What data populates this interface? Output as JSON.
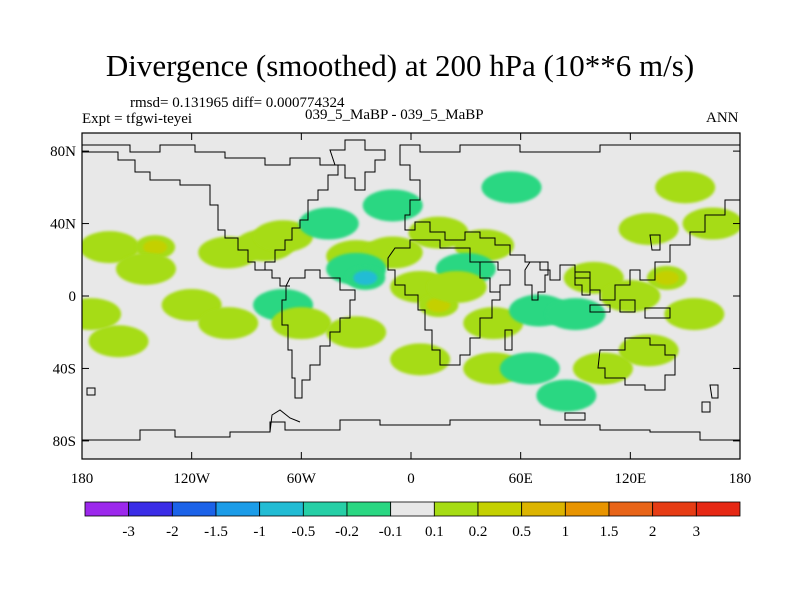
{
  "title": "Divergence (smoothed) at 200 hPa (10**6 m/s)",
  "stats": "rmsd= 0.131965 diff= 0.000774324",
  "case_label": "039_5_MaBP - 039_5_MaBP",
  "expt_label": "Expt = tfgwi-teyei",
  "season": "ANN",
  "chart_data": {
    "type": "contour-map",
    "title": "Divergence (smoothed) at 200 hPa (10**6 m/s)",
    "units": "10**6 m/s",
    "x_ticks": [
      "180",
      "120W",
      "60W",
      "0",
      "60E",
      "120E",
      "180"
    ],
    "x_tick_values": [
      -180,
      -120,
      -60,
      0,
      60,
      120,
      180
    ],
    "y_ticks": [
      "80N",
      "40N",
      "0",
      "40S",
      "80S"
    ],
    "y_tick_values": [
      80,
      40,
      0,
      -40,
      -80
    ],
    "xlim": [
      -180,
      180
    ],
    "ylim": [
      -90,
      90
    ],
    "levels": [
      "-3",
      "-2",
      "-1.5",
      "-1",
      "-0.5",
      "-0.2",
      "-0.1",
      "0.1",
      "0.2",
      "0.5",
      "1",
      "1.5",
      "2",
      "3"
    ],
    "colors": [
      "#9c28ec",
      "#3a2ce6",
      "#1b62e8",
      "#1b9ce8",
      "#22bcd4",
      "#26cfa6",
      "#2ad782",
      "#e8e8e8",
      "#a6dc14",
      "#c4d000",
      "#dcb400",
      "#e89400",
      "#e86418",
      "#e63c14",
      "#e62814"
    ],
    "blobs": [
      {
        "lon": -165,
        "lat": 27,
        "level": 0.2
      },
      {
        "lon": -140,
        "lat": 27,
        "level": 0.5
      },
      {
        "lon": -145,
        "lat": 15,
        "level": 0.2
      },
      {
        "lon": -100,
        "lat": 24,
        "level": 0.2
      },
      {
        "lon": -80,
        "lat": 28,
        "level": 0.2
      },
      {
        "lon": -70,
        "lat": 33,
        "level": 0.2
      },
      {
        "lon": -30,
        "lat": 22,
        "level": 0.2
      },
      {
        "lon": -10,
        "lat": 24,
        "level": 0.2
      },
      {
        "lon": -30,
        "lat": 15,
        "level": -0.2
      },
      {
        "lon": -25,
        "lat": 10,
        "level": -0.5
      },
      {
        "lon": -45,
        "lat": 40,
        "level": -0.2
      },
      {
        "lon": 15,
        "lat": 35,
        "level": 0.2
      },
      {
        "lon": 40,
        "lat": 28,
        "level": 0.2
      },
      {
        "lon": 30,
        "lat": 15,
        "level": -0.2
      },
      {
        "lon": 5,
        "lat": 5,
        "level": 0.2
      },
      {
        "lon": 15,
        "lat": -5,
        "level": 0.5
      },
      {
        "lon": 25,
        "lat": 5,
        "level": 0.2
      },
      {
        "lon": 45,
        "lat": -15,
        "level": 0.2
      },
      {
        "lon": 70,
        "lat": -8,
        "level": -0.2
      },
      {
        "lon": 90,
        "lat": -10,
        "level": -0.2
      },
      {
        "lon": 100,
        "lat": 10,
        "level": 0.2
      },
      {
        "lon": 120,
        "lat": 0,
        "level": 0.2
      },
      {
        "lon": 140,
        "lat": 10,
        "level": 0.5
      },
      {
        "lon": 155,
        "lat": -10,
        "level": 0.2
      },
      {
        "lon": 130,
        "lat": 37,
        "level": 0.2
      },
      {
        "lon": -120,
        "lat": -5,
        "level": 0.2
      },
      {
        "lon": -100,
        "lat": -15,
        "level": 0.2
      },
      {
        "lon": -70,
        "lat": -5,
        "level": -0.2
      },
      {
        "lon": -60,
        "lat": -15,
        "level": 0.2
      },
      {
        "lon": -30,
        "lat": -20,
        "level": 0.2
      },
      {
        "lon": -175,
        "lat": -10,
        "level": 0.2
      },
      {
        "lon": -160,
        "lat": -25,
        "level": 0.2
      },
      {
        "lon": 5,
        "lat": -35,
        "level": 0.2
      },
      {
        "lon": 45,
        "lat": -40,
        "level": 0.2
      },
      {
        "lon": 105,
        "lat": -40,
        "level": 0.2
      },
      {
        "lon": 130,
        "lat": -30,
        "level": 0.2
      },
      {
        "lon": 85,
        "lat": -55,
        "level": -0.2
      },
      {
        "lon": 165,
        "lat": 40,
        "level": 0.2
      },
      {
        "lon": -10,
        "lat": 50,
        "level": -0.2
      },
      {
        "lon": 55,
        "lat": 60,
        "level": -0.2
      },
      {
        "lon": 150,
        "lat": 60,
        "level": 0.2
      },
      {
        "lon": 65,
        "lat": -40,
        "level": -0.2
      }
    ]
  }
}
